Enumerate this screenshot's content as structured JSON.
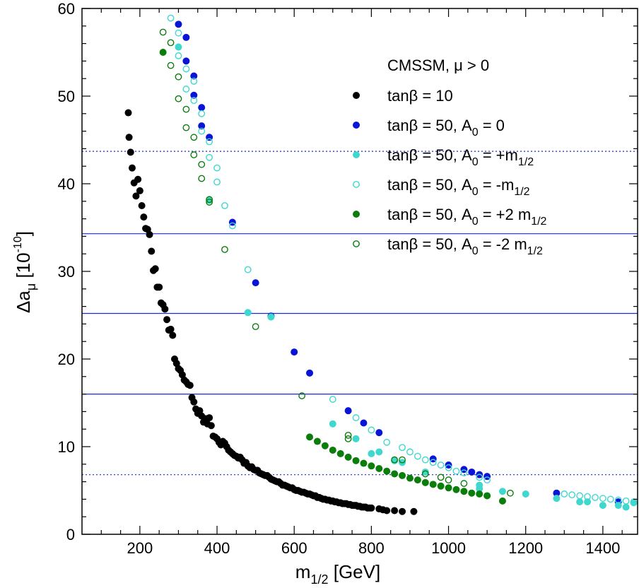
{
  "chart_data": {
    "type": "scatter",
    "title": "",
    "xlabel": {
      "main": "m",
      "sub": "1/2",
      "unit": " [GeV]"
    },
    "ylabel": {
      "main": "Δa",
      "sub": "μ",
      "unit_pre": " [10",
      "unit_sup": "-10",
      "unit_post": "]"
    },
    "xlim": [
      50,
      1490
    ],
    "ylim": [
      0,
      60
    ],
    "x_ticks": [
      200,
      400,
      600,
      800,
      1000,
      1200,
      1400
    ],
    "y_ticks": [
      0,
      10,
      20,
      30,
      40,
      50,
      60
    ],
    "grid": false,
    "legend_position": "top-right",
    "legend_title": "CMSSM, μ > 0",
    "colors": {
      "black": "#000000",
      "blue": "#0a14d6",
      "turquoise": "#40d7cf",
      "green": "#0a7d0a",
      "reference_line": "#1a2ad8"
    },
    "reference_lines": [
      {
        "y": 43.7,
        "style": "dotted"
      },
      {
        "y": 34.3,
        "style": "solid"
      },
      {
        "y": 25.2,
        "style": "solid"
      },
      {
        "y": 16.0,
        "style": "solid"
      },
      {
        "y": 6.8,
        "style": "dotted"
      }
    ],
    "series": [
      {
        "legend": {
          "pre": "tanβ = 10",
          "sub": "",
          "post": ""
        },
        "color": "#000000",
        "marker": "filled",
        "points": [
          [
            170,
            48.1
          ],
          [
            172,
            45.3
          ],
          [
            176,
            43.6
          ],
          [
            180,
            41.8
          ],
          [
            185,
            40.1
          ],
          [
            190,
            38.6
          ],
          [
            195,
            40.5
          ],
          [
            200,
            39.2
          ],
          [
            205,
            37.5
          ],
          [
            210,
            36.2
          ],
          [
            215,
            34.9
          ],
          [
            220,
            34.8
          ],
          [
            225,
            34.2
          ],
          [
            230,
            32.3
          ],
          [
            235,
            30.1
          ],
          [
            240,
            30.3
          ],
          [
            245,
            28.2
          ],
          [
            250,
            28.2
          ],
          [
            255,
            26.4
          ],
          [
            260,
            26.2
          ],
          [
            265,
            25.7
          ],
          [
            270,
            24.5
          ],
          [
            275,
            23.3
          ],
          [
            280,
            23.4
          ],
          [
            285,
            22.7
          ],
          [
            290,
            20.0
          ],
          [
            295,
            19.5
          ],
          [
            300,
            18.9
          ],
          [
            305,
            18.7
          ],
          [
            310,
            18.2
          ],
          [
            315,
            17.6
          ],
          [
            320,
            17.4
          ],
          [
            325,
            17.1
          ],
          [
            330,
            17.0
          ],
          [
            335,
            15.6
          ],
          [
            340,
            15.1
          ],
          [
            345,
            14.3
          ],
          [
            350,
            13.8
          ],
          [
            355,
            14.1
          ],
          [
            360,
            13.5
          ],
          [
            365,
            12.8
          ],
          [
            370,
            13.2
          ],
          [
            375,
            12.6
          ],
          [
            380,
            13.3
          ],
          [
            385,
            12.4
          ],
          [
            390,
            11.2
          ],
          [
            395,
            11.1
          ],
          [
            400,
            10.9
          ],
          [
            405,
            10.5
          ],
          [
            410,
            10.2
          ],
          [
            415,
            10.6
          ],
          [
            420,
            10.4
          ],
          [
            425,
            10.0
          ],
          [
            430,
            9.6
          ],
          [
            435,
            9.4
          ],
          [
            440,
            9.2
          ],
          [
            445,
            9.0
          ],
          [
            450,
            8.9
          ],
          [
            455,
            8.7
          ],
          [
            460,
            8.8
          ],
          [
            465,
            8.5
          ],
          [
            470,
            8.1
          ],
          [
            475,
            8.2
          ],
          [
            480,
            7.8
          ],
          [
            485,
            7.6
          ],
          [
            490,
            7.7
          ],
          [
            495,
            7.4
          ],
          [
            500,
            7.3
          ],
          [
            505,
            7.3
          ],
          [
            510,
            7.0
          ],
          [
            515,
            6.9
          ],
          [
            520,
            6.8
          ],
          [
            525,
            6.7
          ],
          [
            530,
            6.7
          ],
          [
            535,
            6.5
          ],
          [
            540,
            6.3
          ],
          [
            545,
            6.2
          ],
          [
            550,
            6.1
          ],
          [
            555,
            6.0
          ],
          [
            560,
            6.0
          ],
          [
            565,
            5.8
          ],
          [
            570,
            5.6
          ],
          [
            575,
            5.6
          ],
          [
            580,
            5.5
          ],
          [
            585,
            5.4
          ],
          [
            590,
            5.3
          ],
          [
            595,
            5.3
          ],
          [
            600,
            5.1
          ],
          [
            605,
            5.0
          ],
          [
            610,
            5.0
          ],
          [
            615,
            4.9
          ],
          [
            620,
            4.8
          ],
          [
            625,
            4.8
          ],
          [
            630,
            4.7
          ],
          [
            635,
            4.6
          ],
          [
            640,
            4.6
          ],
          [
            645,
            4.5
          ],
          [
            650,
            4.4
          ],
          [
            655,
            4.4
          ],
          [
            660,
            4.2
          ],
          [
            665,
            4.2
          ],
          [
            670,
            4.1
          ],
          [
            675,
            4.0
          ],
          [
            680,
            4.0
          ],
          [
            685,
            3.9
          ],
          [
            690,
            3.9
          ],
          [
            695,
            3.8
          ],
          [
            700,
            3.8
          ],
          [
            705,
            3.7
          ],
          [
            710,
            3.7
          ],
          [
            715,
            3.6
          ],
          [
            720,
            3.6
          ],
          [
            725,
            3.5
          ],
          [
            730,
            3.5
          ],
          [
            735,
            3.5
          ],
          [
            740,
            3.4
          ],
          [
            745,
            3.4
          ],
          [
            750,
            3.3
          ],
          [
            755,
            3.3
          ],
          [
            760,
            3.3
          ],
          [
            765,
            3.2
          ],
          [
            770,
            3.2
          ],
          [
            775,
            3.1
          ],
          [
            780,
            3.1
          ],
          [
            785,
            3.1
          ],
          [
            790,
            3.0
          ],
          [
            795,
            3.0
          ],
          [
            800,
            3.0
          ],
          [
            820,
            2.9
          ],
          [
            830,
            2.8
          ],
          [
            840,
            2.7
          ],
          [
            860,
            2.7
          ],
          [
            880,
            2.6
          ],
          [
            910,
            2.6
          ]
        ]
      },
      {
        "legend": {
          "pre": "tanβ = 50, A",
          "sub": "0",
          "post": " = 0"
        },
        "color": "#0a14d6",
        "marker": "filled",
        "points": [
          [
            300,
            58.2
          ],
          [
            320,
            56.7
          ],
          [
            320,
            54.0
          ],
          [
            340,
            52.3
          ],
          [
            340,
            50.1
          ],
          [
            360,
            48.7
          ],
          [
            360,
            46.6
          ],
          [
            380,
            45.3
          ],
          [
            440,
            35.6
          ],
          [
            500,
            28.7
          ],
          [
            540,
            24.9
          ],
          [
            600,
            20.8
          ],
          [
            640,
            18.4
          ],
          [
            740,
            14.1
          ],
          [
            780,
            12.7
          ],
          [
            820,
            11.6
          ],
          [
            960,
            8.6
          ],
          [
            1000,
            7.9
          ],
          [
            1040,
            7.4
          ],
          [
            1060,
            7.1
          ],
          [
            1080,
            6.8
          ],
          [
            1100,
            6.6
          ],
          [
            1280,
            4.7
          ],
          [
            1440,
            3.7
          ]
        ]
      },
      {
        "legend": {
          "pre": "tanβ = 50, A",
          "sub": "0",
          "post": " = +m",
          "post_sub": "1/2"
        },
        "color": "#40d7cf",
        "marker": "filled",
        "points": [
          [
            300,
            55.6
          ],
          [
            380,
            38.1
          ],
          [
            480,
            25.3
          ],
          [
            540,
            24.8
          ],
          [
            700,
            12.6
          ],
          [
            760,
            10.9
          ],
          [
            800,
            9.2
          ],
          [
            820,
            9.4
          ],
          [
            860,
            8.4
          ],
          [
            880,
            8.2
          ],
          [
            940,
            7.1
          ],
          [
            1080,
            5.6
          ],
          [
            1080,
            5.2
          ],
          [
            1140,
            4.9
          ],
          [
            1200,
            4.6
          ],
          [
            1280,
            4.1
          ],
          [
            1340,
            3.7
          ],
          [
            1360,
            3.7
          ],
          [
            1400,
            3.3
          ],
          [
            1440,
            3.3
          ],
          [
            1460,
            3.1
          ],
          [
            1480,
            3.6
          ]
        ]
      },
      {
        "legend": {
          "pre": "tanβ = 50, A",
          "sub": "0",
          "post": " = -m",
          "post_sub": "1/2"
        },
        "color": "#40d7cf",
        "marker": "open",
        "points": [
          [
            280,
            58.9
          ],
          [
            300,
            57.2
          ],
          [
            300,
            54.6
          ],
          [
            320,
            53.1
          ],
          [
            320,
            50.8
          ],
          [
            340,
            51.7
          ],
          [
            340,
            49.5
          ],
          [
            360,
            48.0
          ],
          [
            360,
            46.0
          ],
          [
            380,
            44.8
          ],
          [
            380,
            43.0
          ],
          [
            400,
            41.8
          ],
          [
            400,
            40.2
          ],
          [
            420,
            37.5
          ],
          [
            440,
            35.2
          ],
          [
            480,
            30.2
          ],
          [
            700,
            15.4
          ],
          [
            760,
            13.3
          ],
          [
            800,
            11.9
          ],
          [
            840,
            10.5
          ],
          [
            880,
            9.9
          ],
          [
            900,
            9.4
          ],
          [
            920,
            8.9
          ],
          [
            940,
            8.5
          ],
          [
            960,
            8.2
          ],
          [
            980,
            7.9
          ],
          [
            1000,
            7.6
          ],
          [
            1020,
            7.2
          ],
          [
            1040,
            7.0
          ],
          [
            1080,
            6.5
          ],
          [
            1100,
            6.2
          ],
          [
            1300,
            4.6
          ],
          [
            1320,
            4.5
          ],
          [
            1340,
            4.4
          ],
          [
            1360,
            4.3
          ],
          [
            1380,
            4.2
          ],
          [
            1400,
            4.1
          ],
          [
            1420,
            4.0
          ],
          [
            1440,
            3.9
          ],
          [
            1460,
            3.8
          ],
          [
            1480,
            3.7
          ]
        ]
      },
      {
        "legend": {
          "pre": "tanβ = 50, A",
          "sub": "0",
          "post": " = +2 m",
          "post_sub": "1/2"
        },
        "color": "#0a7d0a",
        "marker": "filled",
        "points": [
          [
            260,
            55.0
          ],
          [
            640,
            11.1
          ],
          [
            660,
            10.6
          ],
          [
            680,
            10.1
          ],
          [
            700,
            9.6
          ],
          [
            720,
            9.2
          ],
          [
            740,
            8.8
          ],
          [
            760,
            8.4
          ],
          [
            780,
            8.1
          ],
          [
            800,
            7.8
          ],
          [
            820,
            7.5
          ],
          [
            840,
            7.2
          ],
          [
            860,
            6.9
          ],
          [
            880,
            6.7
          ],
          [
            900,
            6.4
          ],
          [
            920,
            6.2
          ],
          [
            940,
            5.9
          ],
          [
            960,
            5.7
          ],
          [
            980,
            5.5
          ],
          [
            1000,
            5.3
          ],
          [
            1020,
            5.1
          ],
          [
            1040,
            4.9
          ],
          [
            1060,
            4.7
          ],
          [
            1080,
            4.6
          ],
          [
            1100,
            4.4
          ],
          [
            1140,
            3.8
          ]
        ]
      },
      {
        "legend": {
          "pre": "tanβ = 50, A",
          "sub": "0",
          "post": " = -2 m",
          "post_sub": "1/2"
        },
        "color": "#0a7d0a",
        "marker": "open",
        "points": [
          [
            260,
            57.3
          ],
          [
            280,
            56.1
          ],
          [
            280,
            53.5
          ],
          [
            300,
            52.2
          ],
          [
            300,
            49.7
          ],
          [
            320,
            48.5
          ],
          [
            320,
            46.4
          ],
          [
            340,
            45.3
          ],
          [
            340,
            43.3
          ],
          [
            360,
            42.2
          ],
          [
            360,
            40.6
          ],
          [
            380,
            38.2
          ],
          [
            380,
            37.9
          ],
          [
            420,
            32.5
          ],
          [
            500,
            23.7
          ],
          [
            620,
            15.8
          ],
          [
            740,
            11.3
          ],
          [
            740,
            10.9
          ],
          [
            860,
            8.5
          ],
          [
            880,
            8.5
          ],
          [
            940,
            6.9
          ],
          [
            980,
            6.5
          ],
          [
            1000,
            6.2
          ],
          [
            1040,
            5.8
          ],
          [
            1160,
            4.7
          ]
        ]
      }
    ]
  }
}
